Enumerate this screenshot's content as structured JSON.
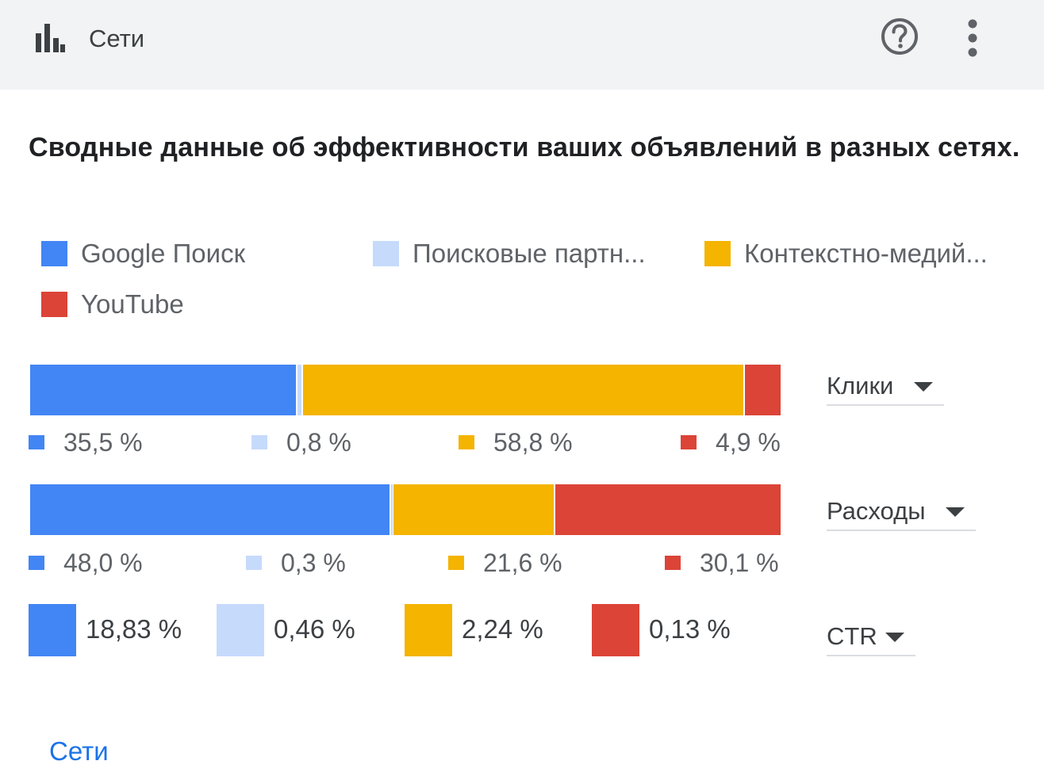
{
  "header": {
    "title": "Сети",
    "app_icon": "bar-chart-icon",
    "help_icon": "help-icon",
    "menu_icon": "more-vert-icon"
  },
  "summary": "Сводные данные об эффективности ваших объявлений в разных сетях.",
  "colors": {
    "google": "#4285f4",
    "partners": "#c6dafc",
    "display": "#f4b400",
    "youtube": "#db4437"
  },
  "legend": [
    {
      "label": "Google Поиск"
    },
    {
      "label": "Поисковые партн..."
    },
    {
      "label": "Контекстно-медий..."
    },
    {
      "label": "YouTube"
    }
  ],
  "chart_data": [
    {
      "type": "bar",
      "title": "Клики",
      "categories": [
        "Google Поиск",
        "Поисковые партн...",
        "Контекстно-медий...",
        "YouTube"
      ],
      "values": [
        35.5,
        0.8,
        58.8,
        4.9
      ],
      "labels": [
        "35,5 %",
        "0,8 %",
        "58,8 %",
        "4,9 %"
      ]
    },
    {
      "type": "bar",
      "title": "Расходы",
      "categories": [
        "Google Поиск",
        "Поисковые партн...",
        "Контекстно-медий...",
        "YouTube"
      ],
      "values": [
        48.0,
        0.3,
        21.6,
        30.1
      ],
      "labels": [
        "48,0 %",
        "0,3 %",
        "21,6 %",
        "30,1 %"
      ]
    },
    {
      "type": "table",
      "title": "CTR",
      "categories": [
        "Google Поиск",
        "Поисковые партн...",
        "Контекстно-медий...",
        "YouTube"
      ],
      "values": [
        18.83,
        0.46,
        2.24,
        0.13
      ],
      "labels": [
        "18,83 %",
        "0,46 %",
        "2,24 %",
        "0,13 %"
      ]
    }
  ],
  "selects": {
    "clicks": "Клики",
    "cost": "Расходы",
    "ctr": "CTR"
  },
  "footer": {
    "link": "Сети"
  }
}
